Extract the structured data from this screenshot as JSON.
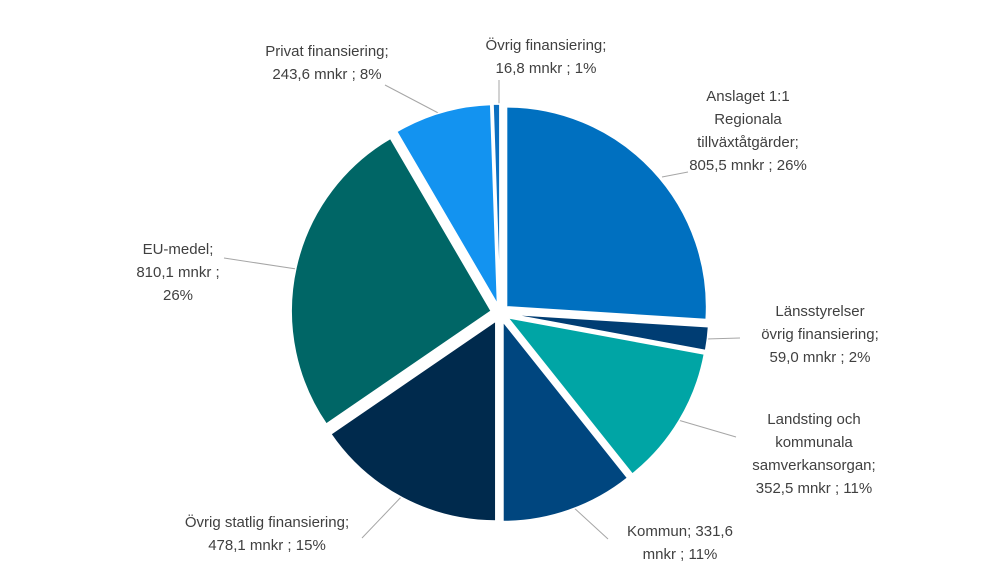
{
  "chart_data": {
    "type": "pie",
    "title": "",
    "unit": "mnkr",
    "slices": [
      {
        "lines": [
          "Anslaget 1:1",
          "Regionala",
          "tillväxtåtgärder;",
          "805,5 mnkr ; 26%"
        ],
        "value": 805.5,
        "percent": 26,
        "color": "#0070C0"
      },
      {
        "lines": [
          "Länsstyrelser",
          "övrig finansiering;",
          "59,0 mnkr ; 2%"
        ],
        "value": 59.0,
        "percent": 2,
        "color": "#003D73"
      },
      {
        "lines": [
          "Landsting och",
          "kommunala",
          "samverkansorgan;",
          "352,5 mnkr ; 11%"
        ],
        "value": 352.5,
        "percent": 11,
        "color": "#00A5A5"
      },
      {
        "lines": [
          "Kommun;  331,6",
          "mnkr ; 11%"
        ],
        "value": 331.6,
        "percent": 11,
        "color": "#00467F"
      },
      {
        "lines": [
          "Övrig statlig finansiering;",
          "478,1 mnkr ; 15%"
        ],
        "value": 478.1,
        "percent": 15,
        "color": "#002A4D"
      },
      {
        "lines": [
          "EU-medel;",
          "810,1 mnkr ;",
          "26%"
        ],
        "value": 810.1,
        "percent": 26,
        "color": "#006666"
      },
      {
        "lines": [
          "Privat finansiering;",
          "243,6 mnkr ; 8%"
        ],
        "value": 243.6,
        "percent": 8,
        "color": "#1393F0"
      },
      {
        "lines": [
          "Övrig finansiering;",
          "16,8 mnkr ; 1%"
        ],
        "value": 16.8,
        "percent": 1,
        "color": "#0B6FC0"
      }
    ]
  }
}
